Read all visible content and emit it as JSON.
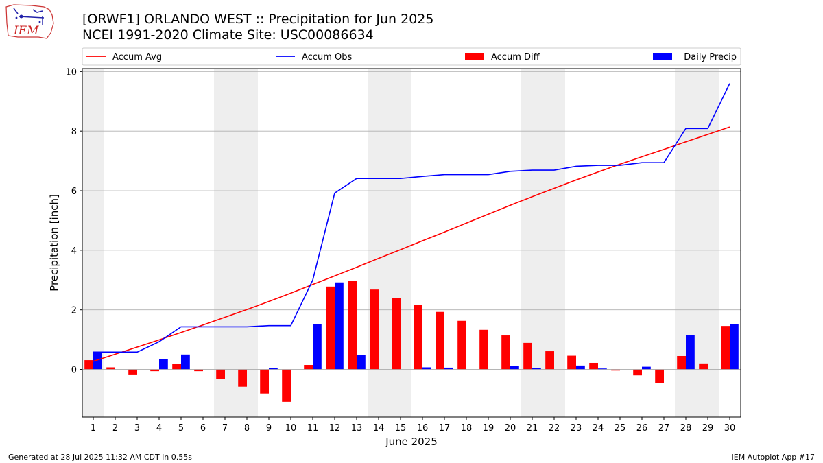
{
  "page": {
    "title_line1": "[ORWF1] ORLANDO WEST :: Precipitation for Jun 2025",
    "title_line2": "NCEI 1991-2020 Climate Site: USC00086634",
    "footer_left": "Generated at 28 Jul 2025 11:32 AM CDT in 0.55s",
    "footer_right": "IEM Autoplot App #17",
    "logo_text": "IEM"
  },
  "chart_data": {
    "type": "bar",
    "xlabel": "June 2025",
    "ylabel": "Precipitation [inch]",
    "xlim": [
      0.5,
      30.5
    ],
    "ylim": [
      -1.6,
      10.1
    ],
    "yticks": [
      0,
      2,
      4,
      6,
      8,
      10
    ],
    "grid": "y",
    "legend_placement": "top",
    "weekend_shading": [
      [
        0.5,
        1.5
      ],
      [
        6.5,
        8.5
      ],
      [
        13.5,
        15.5
      ],
      [
        20.5,
        22.5
      ],
      [
        27.5,
        29.5
      ]
    ],
    "days": [
      1,
      2,
      3,
      4,
      5,
      6,
      7,
      8,
      9,
      10,
      11,
      12,
      13,
      14,
      15,
      16,
      17,
      18,
      19,
      20,
      21,
      22,
      23,
      24,
      25,
      26,
      27,
      28,
      29,
      30
    ],
    "series": [
      {
        "name": "Accum Avg",
        "kind": "line",
        "color": "#ff0000",
        "values": [
          0.27,
          0.51,
          0.75,
          0.99,
          1.24,
          1.49,
          1.75,
          2.01,
          2.28,
          2.56,
          2.85,
          3.14,
          3.43,
          3.73,
          4.02,
          4.32,
          4.61,
          4.91,
          5.21,
          5.51,
          5.8,
          6.08,
          6.36,
          6.63,
          6.89,
          7.14,
          7.39,
          7.64,
          7.89,
          8.14
        ]
      },
      {
        "name": "Accum Obs",
        "kind": "line",
        "color": "#0000ff",
        "values": [
          0.58,
          0.58,
          0.58,
          0.93,
          1.43,
          1.43,
          1.43,
          1.43,
          1.47,
          1.47,
          3.0,
          5.92,
          6.41,
          6.41,
          6.41,
          6.48,
          6.54,
          6.54,
          6.54,
          6.65,
          6.69,
          6.69,
          6.82,
          6.85,
          6.85,
          6.94,
          6.94,
          8.09,
          8.09,
          9.6
        ]
      },
      {
        "name": "Accum Diff",
        "kind": "bar",
        "color": "#ff0000",
        "values": [
          0.31,
          0.07,
          -0.17,
          -0.06,
          0.19,
          -0.06,
          -0.32,
          -0.58,
          -0.81,
          -1.09,
          0.15,
          2.78,
          2.98,
          2.68,
          2.39,
          2.16,
          1.93,
          1.63,
          1.33,
          1.14,
          0.89,
          0.61,
          0.46,
          0.22,
          -0.04,
          -0.2,
          -0.45,
          0.45,
          0.2,
          1.46
        ]
      },
      {
        "name": "Daily Precip",
        "kind": "bar",
        "color": "#0000ff",
        "values": [
          0.58,
          0.0,
          0.0,
          0.35,
          0.5,
          0.0,
          0.0,
          0.0,
          0.04,
          0.0,
          1.53,
          2.92,
          0.49,
          0.0,
          0.0,
          0.07,
          0.06,
          0.0,
          0.0,
          0.11,
          0.04,
          0.0,
          0.13,
          0.03,
          0.0,
          0.09,
          0.0,
          1.15,
          0.0,
          1.51
        ]
      }
    ]
  }
}
